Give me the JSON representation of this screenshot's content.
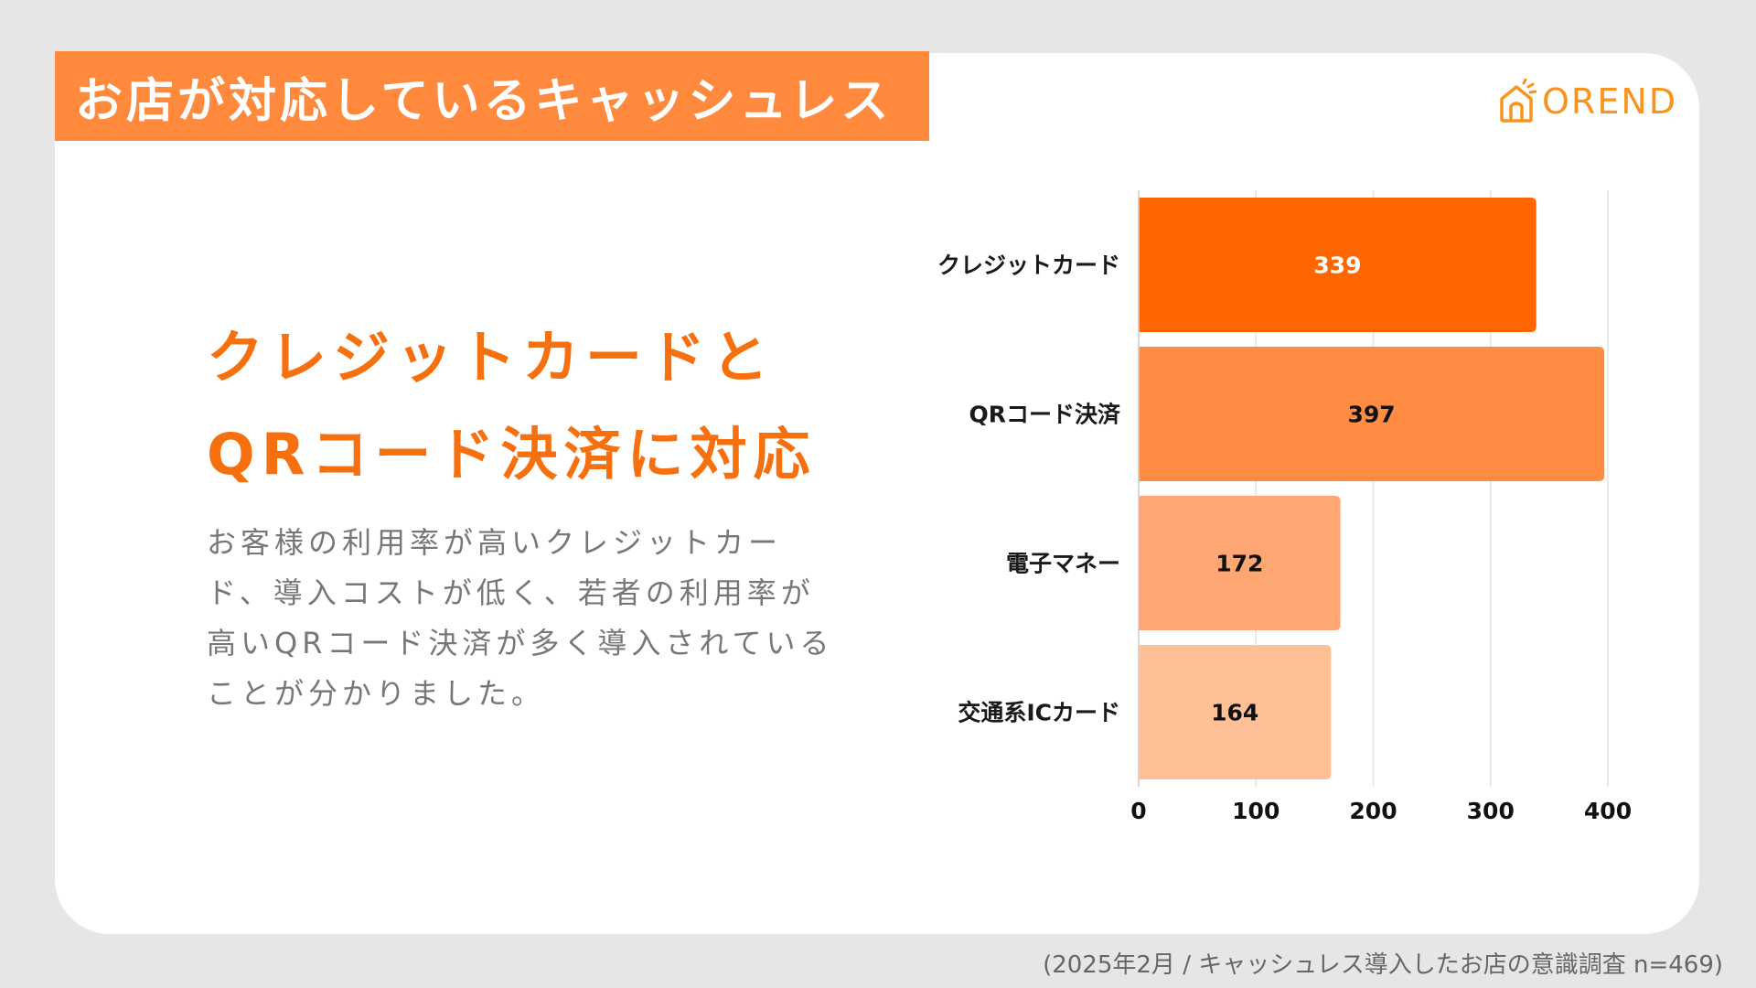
{
  "header": {
    "title": "お店が対応しているキャッシュレス"
  },
  "logo": {
    "text": "OREND"
  },
  "headline": {
    "line1": "クレジットカードと",
    "line2": "QRコード決済に対応"
  },
  "body": {
    "text": "お客様の利用率が高いクレジットカード、導入コストが低く、若者の利用率が高いQRコード決済が多く導入されていることが分かりました。"
  },
  "footer": {
    "source": "(2025年2月 / キャッシュレス導入したお店の意識調査 n=469)"
  },
  "chart_data": {
    "type": "bar",
    "orientation": "horizontal",
    "title": "",
    "xlabel": "",
    "ylabel": "",
    "categories": [
      "クレジットカード",
      "QRコード決済",
      "電子マネー",
      "交通系ICカード"
    ],
    "values": [
      339,
      397,
      172,
      164
    ],
    "value_labels": [
      "339",
      "397",
      "172",
      "164"
    ],
    "bar_colors": [
      "#ff6600",
      "#ff8c42",
      "#ffa772",
      "#ffc097"
    ],
    "label_colors": [
      "#ffffff",
      "#111111",
      "#111111",
      "#111111"
    ],
    "xlim": [
      0,
      400
    ],
    "xticks": [
      0,
      100,
      200,
      300,
      400
    ],
    "xtick_labels": [
      "0",
      "100",
      "200",
      "300",
      "400"
    ],
    "grid": true
  },
  "colors": {
    "accent": "#ff8a3d",
    "headline": "#f7700f",
    "background": "#e6e6e6",
    "card": "#ffffff"
  }
}
